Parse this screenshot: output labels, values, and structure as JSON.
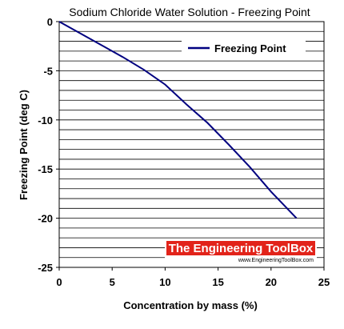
{
  "chart_data": {
    "type": "line",
    "title": "Sodium Chloride Water Solution - Freezing Point",
    "xlabel": "Concentration by mass (%)",
    "ylabel": "Freezing Point (deg C)",
    "xlim": [
      0,
      25
    ],
    "ylim": [
      -25,
      0
    ],
    "x_ticks": [
      0,
      5,
      10,
      15,
      20,
      25
    ],
    "y_ticks": [
      0,
      -5,
      -10,
      -15,
      -20,
      -25
    ],
    "grid": {
      "horizontal": true,
      "vertical": false
    },
    "legend_position": "top-right",
    "series": [
      {
        "name": "Freezing Point",
        "color": "#000080",
        "x": [
          0,
          2,
          4,
          6,
          8,
          10,
          12,
          14,
          16,
          18,
          20,
          22.4
        ],
        "y": [
          0,
          -1.2,
          -2.4,
          -3.6,
          -4.9,
          -6.4,
          -8.4,
          -10.3,
          -12.5,
          -14.8,
          -17.3,
          -20
        ]
      }
    ]
  },
  "watermark": {
    "title": "The Engineering ToolBox",
    "url": "www.EngineeringToolBox.com",
    "colors": {
      "title_bg": "#e2231a",
      "title_fg": "#ffffff"
    }
  }
}
